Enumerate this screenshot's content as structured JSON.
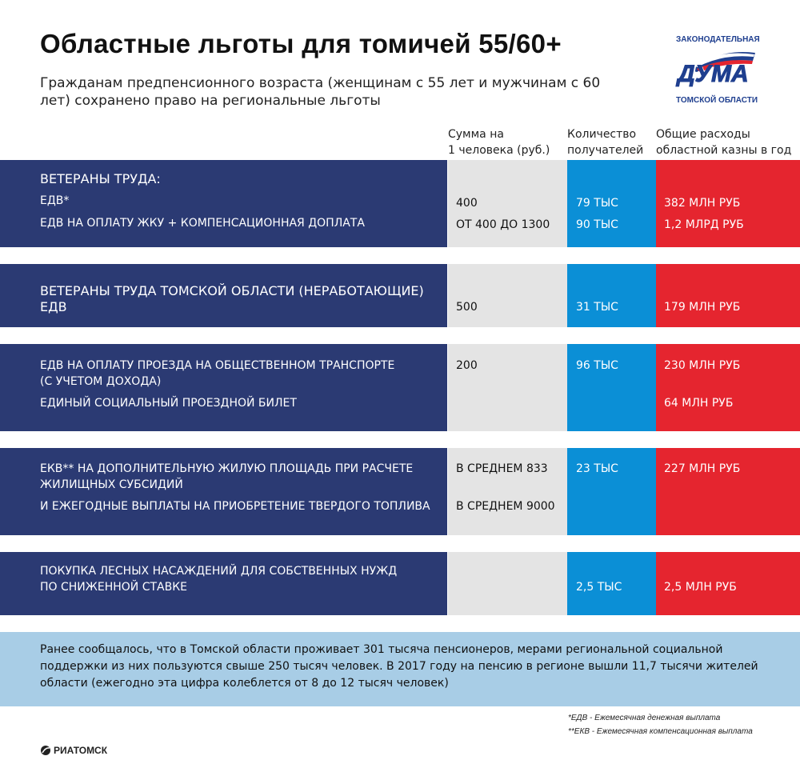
{
  "title": "Областные льготы для томичей 55/60+",
  "subtitle": "Гражданам предпенсионного возраста (женщинам с 55 лет и мужчинам с 60 лет) сохранено право на региональные льготы",
  "logo": {
    "top": "ЗАКОНОДАТЕЛЬНАЯ",
    "main": "ДУМА",
    "bottom": "ТОМСКОЙ ОБЛАСТИ"
  },
  "headers": {
    "sum": [
      "Сумма на",
      "1 человека (руб.)"
    ],
    "count": [
      "Количество",
      "получателей"
    ],
    "cost": [
      "Общие расходы",
      "областной казны в год"
    ]
  },
  "rows": [
    {
      "left": [
        "ВЕТЕРАНЫ ТРУДА:",
        "ЕДВ*",
        "ЕДВ НА ОПЛАТУ ЖКУ + КОМПЕНСАЦИОННАЯ ДОПЛАТА"
      ],
      "sum": [
        "400",
        "ОТ 400 ДО 1300"
      ],
      "count": [
        "79 ТЫС",
        "90 ТЫС"
      ],
      "cost": [
        "382 МЛН РУБ",
        "1,2 МЛРД РУБ"
      ]
    },
    {
      "left": [
        "ВЕТЕРАНЫ ТРУДА ТОМСКОЙ ОБЛАСТИ (НЕРАБОТАЮЩИЕ)",
        "ЕДВ"
      ],
      "sum": [
        "500"
      ],
      "count": [
        "31 ТЫС"
      ],
      "cost": [
        "179 МЛН РУБ"
      ]
    },
    {
      "left": [
        "ЕДВ НА ОПЛАТУ ПРОЕЗДА НА ОБЩЕСТВЕННОМ ТРАНСПОРТЕ",
        "(С УЧЕТОМ ДОХОДА)",
        "ЕДИНЫЙ СОЦИАЛЬНЫЙ ПРОЕЗДНОЙ БИЛЕТ"
      ],
      "sum": [
        "200"
      ],
      "count": [
        "96 ТЫС"
      ],
      "cost": [
        "230 МЛН РУБ",
        "64 МЛН РУБ"
      ]
    },
    {
      "left": [
        "ЕКВ** НА ДОПОЛНИТЕЛЬНУЮ ЖИЛУЮ ПЛОЩАДЬ ПРИ РАСЧЕТЕ",
        "ЖИЛИЩНЫХ СУБСИДИЙ",
        "И ЕЖЕГОДНЫЕ ВЫПЛАТЫ НА ПРИОБРЕТЕНИЕ ТВЕРДОГО ТОПЛИВА"
      ],
      "sum": [
        "В СРЕДНЕМ 833",
        "В СРЕДНЕМ 9000"
      ],
      "count": [
        "23 ТЫС"
      ],
      "cost": [
        "227 МЛН РУБ"
      ]
    },
    {
      "left": [
        "ПОКУПКА ЛЕСНЫХ НАСАЖДЕНИЙ ДЛЯ СОБСТВЕННЫХ НУЖД",
        "ПО СНИЖЕННОЙ СТАВКЕ"
      ],
      "count": [
        "2,5 ТЫС"
      ],
      "cost": [
        "2,5 МЛН РУБ"
      ]
    }
  ],
  "note": "Ранее сообщалось, что в Томской области проживает 301 тысяча пенсионеров, мерами региональной социальной поддержки из них пользуются свыше 250 тысяч человек. В 2017 году на пенсию в регионе вышли 11,7 тысячи жителей области (ежегодно эта цифра колеблется от 8 до 12 тысяч человек)",
  "footnotes": [
    "*ЕДВ - Ежемесячная денежная выплата",
    "**ЕКВ - Ежемесячная компенсационная выплата"
  ],
  "brand": "РИАТОМСК",
  "colors": {
    "navy": "#2b3a73",
    "grey": "#e4e4e4",
    "blue": "#0b8fd6",
    "red": "#e5252f",
    "note": "#a8cde6"
  }
}
